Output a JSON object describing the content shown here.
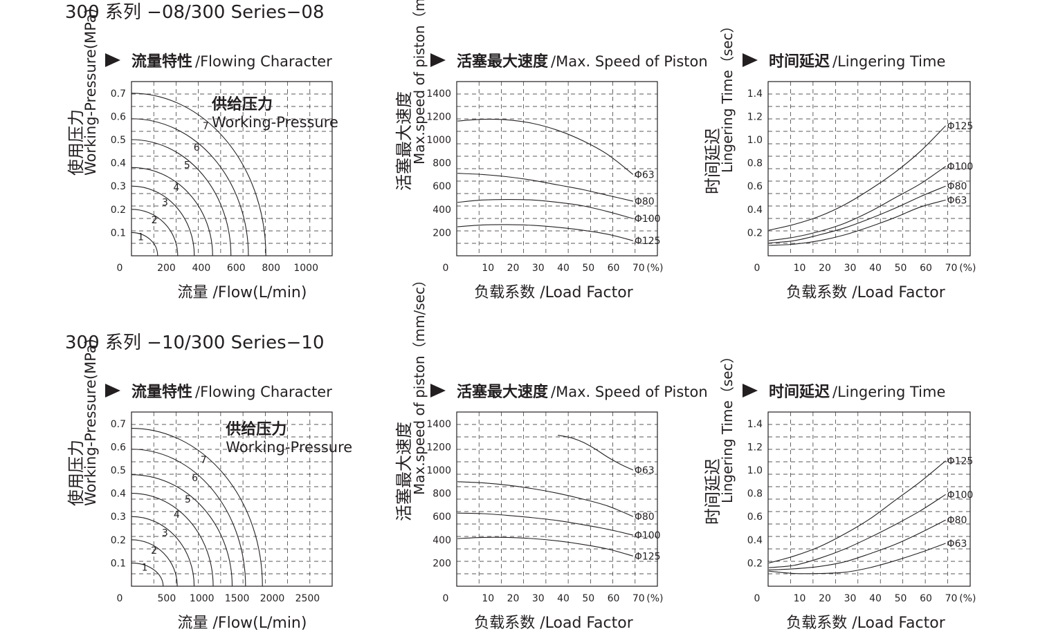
{
  "sections": [
    {
      "title": "300 系列 −08/300 Series−08",
      "charts": [
        {
          "heading_cn": "流量特性",
          "heading_en": "/Flowing Character",
          "chart_data": {
            "type": "line",
            "xlabel": "流量 /Flow(L/min)",
            "ylabel_cn": "使用压力",
            "ylabel_en": "Working-Pressure(MPa)",
            "x_ticks": [
              "0",
              "200",
              "400",
              "600",
              "800",
              "1000"
            ],
            "y_ticks": [
              "0.7",
              "0.6",
              "0.5",
              "0.4",
              "0.3",
              "0.2",
              "0.1"
            ],
            "xlim": [
              0,
              1150
            ],
            "ylim": [
              0,
              0.75
            ],
            "annotation_cn": "供给压力",
            "annotation_en": "Working-Pressure",
            "series": [
              {
                "name": "1",
                "p": 0.1,
                "q": 150
              },
              {
                "name": "2",
                "p": 0.2,
                "q": 265
              },
              {
                "name": "3",
                "p": 0.3,
                "q": 360
              },
              {
                "name": "4",
                "p": 0.38,
                "q": 465
              },
              {
                "name": "5",
                "p": 0.5,
                "q": 570
              },
              {
                "name": "6",
                "p": 0.59,
                "q": 670
              },
              {
                "name": "7",
                "p": 0.7,
                "q": 770
              }
            ]
          }
        },
        {
          "heading_cn": "活塞最大速度",
          "heading_en": "/Max. Speed of Piston",
          "chart_data": {
            "type": "line",
            "xlabel": "负载系数 /Load Factor",
            "ylabel_cn": "活塞最大速度",
            "ylabel_en": "Max.speed of piston（mm/sec）",
            "x_ticks": [
              "0",
              "10",
              "20",
              "30",
              "40",
              "50",
              "60",
              "70",
              "(%)"
            ],
            "y_ticks": [
              "1400",
              "1200",
              "1000",
              "800",
              "600",
              "400",
              "200"
            ],
            "xlim": [
              0,
              80
            ],
            "ylim": [
              0,
              1500
            ],
            "series": [
              {
                "name": "Φ63",
                "x": [
                  0,
                  10,
                  20,
                  30,
                  40,
                  50,
                  60,
                  70
                ],
                "y": [
                  1160,
                  1175,
                  1170,
                  1140,
                  1080,
                  990,
                  870,
                  700
                ]
              },
              {
                "name": "Φ80",
                "x": [
                  0,
                  10,
                  20,
                  30,
                  40,
                  50,
                  60,
                  70
                ],
                "y": [
                  710,
                  700,
                  680,
                  650,
                  610,
                  570,
                  520,
                  470
                ]
              },
              {
                "name": "Φ100",
                "x": [
                  0,
                  10,
                  20,
                  30,
                  40,
                  50,
                  60,
                  70
                ],
                "y": [
                  460,
                  480,
                  485,
                  480,
                  460,
                  430,
                  380,
                  320
                ]
              },
              {
                "name": "Φ125",
                "x": [
                  0,
                  10,
                  20,
                  30,
                  40,
                  50,
                  60,
                  70
                ],
                "y": [
                  250,
                  265,
                  268,
                  262,
                  245,
                  220,
                  185,
                  130
                ]
              }
            ]
          }
        },
        {
          "heading_cn": "时间延迟",
          "heading_en": "/Lingering Time",
          "chart_data": {
            "type": "line",
            "xlabel": "负载系数 /Load Factor",
            "ylabel_cn": "时间延迟",
            "ylabel_en": "Lingering Time（sec）",
            "x_ticks": [
              "0",
              "10",
              "20",
              "30",
              "40",
              "50",
              "60",
              "70",
              "(%)"
            ],
            "y_ticks": [
              "1.4",
              "1.2",
              "1.0",
              "0.8",
              "0.6",
              "0.4",
              "0.2"
            ],
            "xlim": [
              0,
              80
            ],
            "ylim": [
              0,
              1.5
            ],
            "series": [
              {
                "name": "Φ125",
                "x": [
                  0,
                  10,
                  20,
                  30,
                  40,
                  50,
                  60,
                  70
                ],
                "y": [
                  0.22,
                  0.27,
                  0.34,
                  0.44,
                  0.57,
                  0.72,
                  0.9,
                  1.12
                ]
              },
              {
                "name": "Φ100",
                "x": [
                  0,
                  10,
                  20,
                  30,
                  40,
                  50,
                  60,
                  70
                ],
                "y": [
                  0.13,
                  0.16,
                  0.21,
                  0.28,
                  0.38,
                  0.5,
                  0.62,
                  0.77
                ]
              },
              {
                "name": "Φ80",
                "x": [
                  0,
                  10,
                  20,
                  30,
                  40,
                  50,
                  60,
                  70
                ],
                "y": [
                  0.11,
                  0.13,
                  0.18,
                  0.24,
                  0.32,
                  0.41,
                  0.51,
                  0.6
                ]
              },
              {
                "name": "Φ63",
                "x": [
                  0,
                  10,
                  20,
                  30,
                  40,
                  50,
                  60,
                  70
                ],
                "y": [
                  0.09,
                  0.1,
                  0.13,
                  0.18,
                  0.25,
                  0.33,
                  0.42,
                  0.48
                ]
              }
            ]
          }
        }
      ]
    },
    {
      "title": "300 系列 −10/300 Series−10",
      "charts": [
        {
          "heading_cn": "流量特性",
          "heading_en": "/Flowing Character",
          "chart_data": {
            "type": "line",
            "xlabel": "流量 /Flow(L/min)",
            "ylabel_cn": "使用压力",
            "ylabel_en": "Working-Pressure(MPa)",
            "x_ticks": [
              "0",
              "500",
              "1000",
              "1500",
              "2000",
              "2500"
            ],
            "y_ticks": [
              "0.7",
              "0.6",
              "0.5",
              "0.4",
              "0.3",
              "0.2",
              "0.1"
            ],
            "xlim": [
              0,
              2850
            ],
            "ylim": [
              0,
              0.75
            ],
            "annotation_cn": "供给压力",
            "annotation_en": "Working-Pressure",
            "series": [
              {
                "name": "1",
                "p": 0.1,
                "q": 450
              },
              {
                "name": "2",
                "p": 0.2,
                "q": 650
              },
              {
                "name": "3",
                "p": 0.3,
                "q": 890
              },
              {
                "name": "4",
                "p": 0.4,
                "q": 1160
              },
              {
                "name": "5",
                "p": 0.48,
                "q": 1430
              },
              {
                "name": "6",
                "p": 0.59,
                "q": 1620
              },
              {
                "name": "7",
                "p": 0.68,
                "q": 1860
              }
            ]
          }
        },
        {
          "heading_cn": "活塞最大速度",
          "heading_en": "/Max. Speed of Piston",
          "chart_data": {
            "type": "line",
            "xlabel": "负载系数 /Load Factor",
            "ylabel_cn": "活塞最大速度",
            "ylabel_en": "Max.speed of piston（mm/sec）",
            "x_ticks": [
              "0",
              "10",
              "20",
              "30",
              "40",
              "50",
              "60",
              "70",
              "(%)"
            ],
            "y_ticks": [
              "1400",
              "1200",
              "1000",
              "800",
              "600",
              "400",
              "200"
            ],
            "xlim": [
              0,
              80
            ],
            "ylim": [
              0,
              1500
            ],
            "series": [
              {
                "name": "Φ63",
                "x": [
                  40,
                  45,
                  50,
                  55,
                  60,
                  65,
                  70
                ],
                "y": [
                  1300,
                  1280,
                  1240,
                  1180,
                  1110,
                  1050,
                  1000
                ]
              },
              {
                "name": "Φ80",
                "x": [
                  0,
                  10,
                  20,
                  30,
                  40,
                  50,
                  60,
                  70
                ],
                "y": [
                  900,
                  890,
                  870,
                  840,
                  800,
                  750,
                  690,
                  600
                ]
              },
              {
                "name": "Φ100",
                "x": [
                  0,
                  10,
                  20,
                  30,
                  40,
                  50,
                  60,
                  70
                ],
                "y": [
                  630,
                  625,
                  610,
                  590,
                  565,
                  530,
                  490,
                  440
                ]
              },
              {
                "name": "Φ125",
                "x": [
                  0,
                  10,
                  20,
                  30,
                  40,
                  50,
                  60,
                  70
                ],
                "y": [
                  410,
                  420,
                  420,
                  410,
                  390,
                  360,
                  320,
                  260
                ]
              }
            ]
          }
        },
        {
          "heading_cn": "时间延迟",
          "heading_en": "/Lingering Time",
          "chart_data": {
            "type": "line",
            "xlabel": "负载系数 /Load Factor",
            "ylabel_cn": "时间延迟",
            "ylabel_en": "Lingering Time（sec）",
            "x_ticks": [
              "0",
              "10",
              "20",
              "30",
              "40",
              "50",
              "60",
              "70",
              "(%)"
            ],
            "y_ticks": [
              "1.4",
              "1.2",
              "1.0",
              "0.8",
              "0.6",
              "0.4",
              "0.2"
            ],
            "xlim": [
              0,
              80
            ],
            "ylim": [
              0,
              1.5
            ],
            "series": [
              {
                "name": "Φ125",
                "x": [
                  0,
                  10,
                  20,
                  30,
                  40,
                  50,
                  60,
                  70
                ],
                "y": [
                  0.2,
                  0.26,
                  0.34,
                  0.45,
                  0.58,
                  0.74,
                  0.9,
                  1.08
                ]
              },
              {
                "name": "Φ100",
                "x": [
                  0,
                  10,
                  20,
                  30,
                  40,
                  50,
                  60,
                  70
                ],
                "y": [
                  0.16,
                  0.18,
                  0.24,
                  0.32,
                  0.42,
                  0.53,
                  0.65,
                  0.79
                ]
              },
              {
                "name": "Φ80",
                "x": [
                  0,
                  10,
                  20,
                  30,
                  40,
                  50,
                  60,
                  70
                ],
                "y": [
                  0.14,
                  0.15,
                  0.17,
                  0.21,
                  0.28,
                  0.36,
                  0.46,
                  0.57
                ]
              },
              {
                "name": "Φ63",
                "x": [
                  0,
                  10,
                  20,
                  30,
                  40,
                  50,
                  60,
                  70
                ],
                "y": [
                  0.13,
                  0.11,
                  0.11,
                  0.12,
                  0.16,
                  0.22,
                  0.29,
                  0.37
                ]
              }
            ]
          }
        }
      ]
    }
  ]
}
